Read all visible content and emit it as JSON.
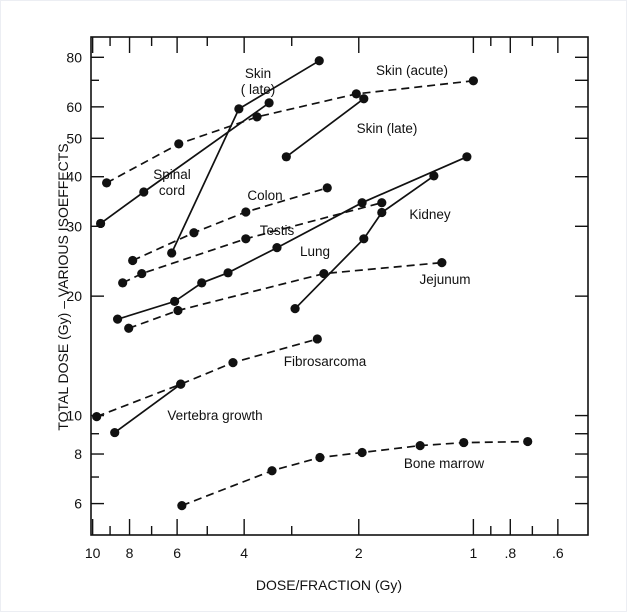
{
  "chart_data": {
    "type": "line",
    "title": "",
    "xlabel": "DOSE/FRACTION (Gy)",
    "ylabel": "TOTAL DOSE (Gy) – VARIOUS ISOEFFECTS",
    "xscale": "log",
    "yscale": "log",
    "xlim": [
      10.1,
      0.5
    ],
    "ylim": [
      5,
      90
    ],
    "x_ticks": [
      {
        "v": 10,
        "label": "10"
      },
      {
        "v": 8,
        "label": "8"
      },
      {
        "v": 6,
        "label": "6"
      },
      {
        "v": 4,
        "label": "4"
      },
      {
        "v": 2,
        "label": "2"
      },
      {
        "v": 1,
        "label": "1"
      },
      {
        "v": 0.8,
        "label": ".8"
      },
      {
        "v": 0.6,
        "label": ".6"
      }
    ],
    "x_minor_ticks": [
      9,
      7,
      5,
      3,
      0.9,
      0.7
    ],
    "y_ticks": [
      {
        "v": 80,
        "label": "80"
      },
      {
        "v": 60,
        "label": "60"
      },
      {
        "v": 50,
        "label": "50"
      },
      {
        "v": 40,
        "label": "40"
      },
      {
        "v": 30,
        "label": "30"
      },
      {
        "v": 20,
        "label": "20"
      },
      {
        "v": 10,
        "label": "10"
      },
      {
        "v": 8,
        "label": "8"
      },
      {
        "v": 6,
        "label": "6"
      }
    ],
    "y_minor_ticks": [
      70,
      9,
      7
    ],
    "grid": false,
    "series": [
      {
        "name": "Skin (late)",
        "label_lines": [
          "Skin",
          "( late)"
        ],
        "style": "solid",
        "x": [
          6.2,
          4.13,
          2.54
        ],
        "y": [
          25.7,
          59.3,
          78.4
        ]
      },
      {
        "name": "Spinal cord",
        "label_lines": [
          "Spinal",
          "cord"
        ],
        "style": "solid",
        "x": [
          9.53,
          7.34,
          3.44
        ],
        "y": [
          30.5,
          36.6,
          61.4
        ]
      },
      {
        "name": "Skin (acute)",
        "label_lines": [
          "Skin (acute)"
        ],
        "style": "dashed",
        "x": [
          9.19,
          5.94,
          3.7,
          2.03,
          1.0
        ],
        "y": [
          38.6,
          48.4,
          56.6,
          64.7,
          69.8
        ]
      },
      {
        "name": "Skin (late) 2",
        "label_lines": [
          "Skin (late)"
        ],
        "style": "solid",
        "x": [
          3.1,
          1.94
        ],
        "y": [
          44.9,
          62.9
        ]
      },
      {
        "name": "Colon",
        "label_lines": [
          "Colon"
        ],
        "style": "dashed",
        "x": [
          7.85,
          5.42,
          3.96,
          2.42
        ],
        "y": [
          24.6,
          28.9,
          32.6,
          37.5
        ]
      },
      {
        "name": "Testis",
        "label_lines": [
          "Testis"
        ],
        "style": "dashed",
        "x": [
          8.34,
          7.43,
          3.96,
          1.74
        ],
        "y": [
          21.6,
          22.8,
          27.9,
          34.4
        ]
      },
      {
        "name": "Lung",
        "label_lines": [
          "Lung"
        ],
        "style": "solid",
        "x": [
          8.6,
          6.09,
          5.17,
          4.41,
          3.28,
          1.96,
          1.04
        ],
        "y": [
          17.5,
          19.4,
          21.6,
          22.9,
          26.5,
          34.4,
          44.9
        ]
      },
      {
        "name": "Kidney",
        "label_lines": [
          "Kidney"
        ],
        "style": "solid",
        "x": [
          2.94,
          1.94,
          1.74,
          1.27
        ],
        "y": [
          18.6,
          27.9,
          32.5,
          40.2
        ]
      },
      {
        "name": "Jejunum",
        "label_lines": [
          "Jejunum"
        ],
        "style": "dashed",
        "x": [
          8.04,
          5.97,
          2.47,
          1.21
        ],
        "y": [
          16.6,
          18.4,
          22.8,
          24.3
        ]
      },
      {
        "name": "Fibrosarcoma",
        "label_lines": [
          "Fibrosarcoma"
        ],
        "style": "dashed",
        "x": [
          9.76,
          5.87,
          4.28,
          2.57
        ],
        "y": [
          9.94,
          12.0,
          13.6,
          15.6
        ]
      },
      {
        "name": "Vertebra growth",
        "label_lines": [
          "Vertebra growth"
        ],
        "style": "solid",
        "x": [
          8.75,
          5.87
        ],
        "y": [
          9.06,
          12.0
        ]
      },
      {
        "name": "Bone marrow",
        "label_lines": [
          "Bone marrow"
        ],
        "style": "dashed",
        "x": [
          5.83,
          3.38,
          2.53,
          1.96,
          1.38,
          1.06,
          0.72
        ],
        "y": [
          5.93,
          7.26,
          7.84,
          8.07,
          8.4,
          8.55,
          8.6
        ]
      }
    ]
  }
}
